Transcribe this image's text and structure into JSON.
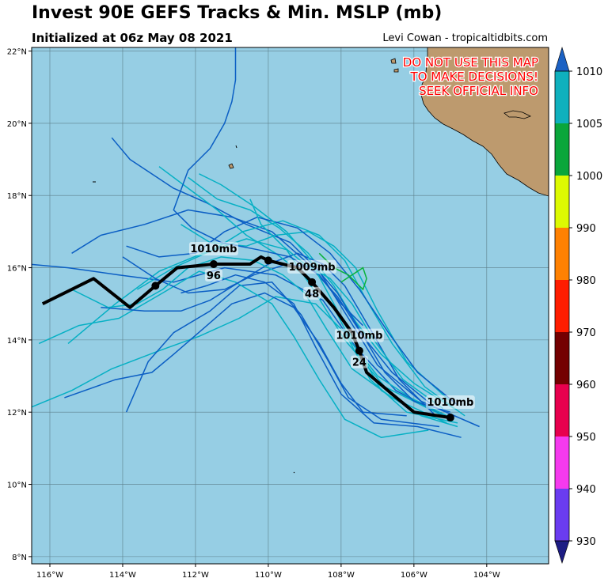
{
  "header": {
    "title": "Invest 90E GEFS Tracks & Min. MSLP (mb)",
    "subtitle": "Initialized at 06z May 08 2021",
    "credit": "Levi Cowan - tropicaltidbits.com"
  },
  "map": {
    "lon_range": [
      -116.5,
      -102.3
    ],
    "lat_range": [
      7.8,
      22.1
    ],
    "lon_ticks": [
      {
        "v": -116,
        "t": "116°W"
      },
      {
        "v": -114,
        "t": "114°W"
      },
      {
        "v": -112,
        "t": "112°W"
      },
      {
        "v": -110,
        "t": "110°W"
      },
      {
        "v": -108,
        "t": "108°W"
      },
      {
        "v": -106,
        "t": "106°W"
      },
      {
        "v": -104,
        "t": "104°W"
      }
    ],
    "lat_ticks": [
      {
        "v": 8,
        "t": "8°N"
      },
      {
        "v": 10,
        "t": "10°N"
      },
      {
        "v": 12,
        "t": "12°N"
      },
      {
        "v": 14,
        "t": "14°N"
      },
      {
        "v": 16,
        "t": "16°N"
      },
      {
        "v": 18,
        "t": "18°N"
      },
      {
        "v": 20,
        "t": "20°N"
      },
      {
        "v": 22,
        "t": "22°N"
      }
    ],
    "ocean_color": "#96cee4",
    "land_color": "#bd9a6e",
    "warning_lines": [
      "DO NOT USE THIS MAP",
      "TO MAKE DECISIONS!",
      "SEEK OFFICIAL INFO"
    ],
    "warning_color": "#ff0000"
  },
  "ensemble_mean": {
    "points": [
      [
        -116.2,
        15.0
      ],
      [
        -114.8,
        15.7
      ],
      [
        -113.8,
        14.9
      ],
      [
        -113.1,
        15.5
      ],
      [
        -112.5,
        16.0
      ],
      [
        -111.5,
        16.1
      ],
      [
        -110.5,
        16.1
      ],
      [
        -110.2,
        16.3
      ],
      [
        -110.0,
        16.2
      ],
      [
        -109.2,
        16.0
      ],
      [
        -108.8,
        15.6
      ],
      [
        -108.2,
        14.9
      ],
      [
        -107.7,
        14.2
      ],
      [
        -107.5,
        13.7
      ],
      [
        -107.3,
        13.1
      ],
      [
        -106.6,
        12.5
      ],
      [
        -106.0,
        12.0
      ],
      [
        -105.0,
        11.85
      ]
    ],
    "markers": [
      {
        "lon": -105.0,
        "lat": 11.85,
        "pressure": "1010mb",
        "hour": ""
      },
      {
        "lon": -107.5,
        "lat": 13.7,
        "pressure": "1010mb",
        "hour": "24"
      },
      {
        "lon": -108.8,
        "lat": 15.6,
        "pressure": "1009mb",
        "hour": "48"
      },
      {
        "lon": -110.0,
        "lat": 16.2,
        "pressure": "",
        "hour": ""
      },
      {
        "lon": -111.5,
        "lat": 16.1,
        "pressure": "1010mb",
        "hour": "96"
      },
      {
        "lon": -113.1,
        "lat": 15.5,
        "pressure": "",
        "hour": ""
      }
    ]
  },
  "members": [
    {
      "color": "#0b5ec4",
      "points": [
        [
          -105.0,
          11.8
        ],
        [
          -106.5,
          12.6
        ],
        [
          -107.6,
          13.8
        ],
        [
          -108.5,
          15.1
        ],
        [
          -109.8,
          15.8
        ],
        [
          -111.2,
          16.0
        ],
        [
          -112.6,
          15.6
        ],
        [
          -114.1,
          15.8
        ],
        [
          -115.5,
          16.0
        ],
        [
          -116.6,
          16.1
        ]
      ]
    },
    {
      "color": "#06b0c4",
      "points": [
        [
          -105.2,
          11.9
        ],
        [
          -106.8,
          12.7
        ],
        [
          -107.9,
          14.0
        ],
        [
          -108.7,
          15.3
        ],
        [
          -109.5,
          16.5
        ],
        [
          -110.6,
          16.8
        ],
        [
          -111.8,
          16.4
        ],
        [
          -113.0,
          15.9
        ],
        [
          -114.2,
          15.0
        ],
        [
          -115.5,
          13.9
        ]
      ]
    },
    {
      "color": "#0b5ec4",
      "points": [
        [
          -104.2,
          11.6
        ],
        [
          -105.8,
          12.3
        ],
        [
          -107.0,
          13.3
        ],
        [
          -107.8,
          14.6
        ],
        [
          -108.6,
          15.9
        ],
        [
          -109.4,
          16.7
        ],
        [
          -110.6,
          17.2
        ],
        [
          -111.7,
          17.8
        ],
        [
          -112.6,
          18.2
        ],
        [
          -113.8,
          19.0
        ],
        [
          -114.3,
          19.6
        ]
      ]
    },
    {
      "color": "#06b0c4",
      "points": [
        [
          -104.8,
          11.7
        ],
        [
          -106.2,
          12.0
        ],
        [
          -107.2,
          12.9
        ],
        [
          -107.9,
          14.2
        ],
        [
          -108.7,
          15.0
        ],
        [
          -109.8,
          15.2
        ],
        [
          -110.8,
          14.6
        ],
        [
          -111.9,
          14.1
        ],
        [
          -113.0,
          13.7
        ],
        [
          -114.3,
          13.2
        ],
        [
          -115.4,
          12.6
        ],
        [
          -116.6,
          12.1
        ]
      ]
    },
    {
      "color": "#0b5ec4",
      "points": [
        [
          -105.5,
          12.2
        ],
        [
          -106.6,
          13.1
        ],
        [
          -107.4,
          14.1
        ],
        [
          -108.1,
          15.2
        ],
        [
          -109.0,
          16.2
        ],
        [
          -109.9,
          17.0
        ],
        [
          -111.0,
          17.4
        ],
        [
          -112.2,
          17.6
        ],
        [
          -113.4,
          17.2
        ],
        [
          -114.6,
          16.9
        ],
        [
          -115.4,
          16.4
        ]
      ]
    },
    {
      "color": "#06b0c4",
      "points": [
        [
          -104.9,
          12.1
        ],
        [
          -106.0,
          12.8
        ],
        [
          -106.9,
          13.6
        ],
        [
          -107.6,
          14.5
        ],
        [
          -108.2,
          15.5
        ],
        [
          -108.9,
          16.4
        ],
        [
          -109.7,
          17.1
        ],
        [
          -110.5,
          17.6
        ],
        [
          -111.4,
          17.9
        ],
        [
          -112.2,
          18.5
        ]
      ]
    },
    {
      "color": "#0b5ec4",
      "points": [
        [
          -105.3,
          11.6
        ],
        [
          -106.9,
          11.8
        ],
        [
          -107.8,
          12.4
        ],
        [
          -108.4,
          13.5
        ],
        [
          -109.1,
          14.7
        ],
        [
          -109.9,
          15.6
        ],
        [
          -110.8,
          15.5
        ],
        [
          -111.6,
          14.8
        ],
        [
          -112.6,
          14.2
        ],
        [
          -113.3,
          13.4
        ],
        [
          -113.9,
          12.0
        ]
      ]
    },
    {
      "color": "#06b0c4",
      "points": [
        [
          -105.0,
          12.3
        ],
        [
          -106.2,
          13.4
        ],
        [
          -107.0,
          14.8
        ],
        [
          -107.6,
          16.0
        ],
        [
          -108.2,
          16.6
        ],
        [
          -108.9,
          17.0
        ],
        [
          -109.8,
          16.9
        ],
        [
          -110.6,
          16.6
        ],
        [
          -111.6,
          16.7
        ],
        [
          -112.4,
          17.2
        ]
      ]
    },
    {
      "color": "#0b5ec4",
      "points": [
        [
          -106.2,
          11.9
        ],
        [
          -107.4,
          12.0
        ],
        [
          -108.0,
          12.8
        ],
        [
          -108.6,
          13.9
        ],
        [
          -109.3,
          14.9
        ],
        [
          -110.1,
          15.3
        ],
        [
          -111.0,
          15.0
        ],
        [
          -111.8,
          14.3
        ],
        [
          -112.6,
          13.6
        ],
        [
          -113.2,
          13.1
        ],
        [
          -114.2,
          12.9
        ],
        [
          -115.6,
          12.4
        ]
      ]
    },
    {
      "color": "#06b0c4",
      "points": [
        [
          -104.6,
          11.9
        ],
        [
          -105.7,
          12.7
        ],
        [
          -106.6,
          13.9
        ],
        [
          -107.3,
          15.1
        ],
        [
          -107.9,
          16.2
        ],
        [
          -108.6,
          16.9
        ],
        [
          -109.6,
          17.3
        ],
        [
          -110.7,
          17.0
        ],
        [
          -111.5,
          16.5
        ],
        [
          -112.6,
          16.0
        ],
        [
          -113.6,
          15.4
        ]
      ]
    },
    {
      "color": "#0b5ec4",
      "points": [
        [
          -104.8,
          12.2
        ],
        [
          -105.9,
          13.1
        ],
        [
          -106.7,
          14.2
        ],
        [
          -107.5,
          15.4
        ],
        [
          -108.3,
          16.4
        ],
        [
          -109.2,
          17.1
        ],
        [
          -110.3,
          17.4
        ],
        [
          -111.2,
          17.0
        ],
        [
          -112.0,
          16.4
        ],
        [
          -113.0,
          16.3
        ],
        [
          -113.9,
          16.6
        ]
      ]
    },
    {
      "color": "#06b0c4",
      "points": [
        [
          -105.6,
          11.5
        ],
        [
          -106.9,
          11.3
        ],
        [
          -107.9,
          11.8
        ],
        [
          -108.6,
          12.9
        ],
        [
          -109.3,
          14.1
        ],
        [
          -109.9,
          15.0
        ],
        [
          -110.9,
          15.6
        ],
        [
          -111.9,
          15.9
        ],
        [
          -112.9,
          15.3
        ],
        [
          -114.1,
          14.6
        ],
        [
          -115.2,
          14.4
        ],
        [
          -116.3,
          13.9
        ]
      ]
    },
    {
      "color": "#0b5ec4",
      "points": [
        [
          -105.4,
          11.9
        ],
        [
          -106.4,
          12.9
        ],
        [
          -107.2,
          14.3
        ],
        [
          -107.9,
          15.5
        ],
        [
          -108.5,
          16.1
        ],
        [
          -109.2,
          16.4
        ],
        [
          -110.0,
          16.1
        ],
        [
          -110.8,
          15.6
        ],
        [
          -111.6,
          15.1
        ],
        [
          -112.4,
          14.8
        ],
        [
          -113.4,
          14.8
        ],
        [
          -114.6,
          14.9
        ]
      ]
    },
    {
      "color": "#06b0c4",
      "points": [
        [
          -104.9,
          11.8
        ],
        [
          -106.1,
          12.4
        ],
        [
          -107.0,
          13.0
        ],
        [
          -107.7,
          13.9
        ],
        [
          -108.2,
          14.9
        ],
        [
          -108.9,
          15.7
        ],
        [
          -109.8,
          16.4
        ],
        [
          -110.6,
          16.9
        ],
        [
          -111.4,
          17.6
        ],
        [
          -112.2,
          18.2
        ],
        [
          -113.0,
          18.8
        ]
      ]
    },
    {
      "color": "#0b5ec4",
      "points": [
        [
          -107.4,
          14.4
        ],
        [
          -108.0,
          15.0
        ],
        [
          -108.6,
          15.8
        ],
        [
          -109.4,
          16.3
        ],
        [
          -110.3,
          16.5
        ],
        [
          -111.3,
          16.7
        ],
        [
          -112.1,
          17.1
        ],
        [
          -112.6,
          17.6
        ],
        [
          -112.2,
          18.7
        ],
        [
          -111.6,
          19.3
        ],
        [
          -111.2,
          20.0
        ],
        [
          -111.0,
          20.6
        ],
        [
          -110.9,
          21.2
        ],
        [
          -110.9,
          22.1
        ]
      ]
    },
    {
      "color": "#06b0c4",
      "points": [
        [
          -104.8,
          11.6
        ],
        [
          -105.8,
          11.9
        ],
        [
          -106.9,
          12.6
        ],
        [
          -107.5,
          13.7
        ],
        [
          -108.2,
          15.0
        ],
        [
          -108.9,
          16.3
        ],
        [
          -109.5,
          17.0
        ],
        [
          -110.4,
          17.7
        ],
        [
          -111.3,
          18.3
        ],
        [
          -111.9,
          18.6
        ]
      ]
    },
    {
      "color": "#0b5ec4",
      "points": [
        [
          -105.0,
          12.0
        ],
        [
          -106.0,
          12.3
        ],
        [
          -106.8,
          13.1
        ],
        [
          -107.5,
          14.3
        ],
        [
          -108.1,
          15.3
        ],
        [
          -108.7,
          16.0
        ],
        [
          -109.5,
          16.1
        ],
        [
          -110.4,
          15.8
        ],
        [
          -111.2,
          15.4
        ],
        [
          -112.2,
          15.3
        ],
        [
          -113.1,
          15.7
        ],
        [
          -114.0,
          16.3
        ]
      ]
    },
    {
      "color": "#06b0c4",
      "points": [
        [
          -105.2,
          12.1
        ],
        [
          -106.3,
          12.9
        ],
        [
          -107.1,
          14.0
        ],
        [
          -107.7,
          15.0
        ],
        [
          -108.3,
          15.7
        ],
        [
          -109.0,
          16.1
        ],
        [
          -109.6,
          16.6
        ],
        [
          -110.2,
          17.2
        ],
        [
          -110.5,
          17.9
        ]
      ]
    },
    {
      "color": "#0b5ec4",
      "points": [
        [
          -104.7,
          11.3
        ],
        [
          -105.9,
          11.6
        ],
        [
          -107.1,
          11.7
        ],
        [
          -108.0,
          12.5
        ],
        [
          -108.7,
          13.8
        ],
        [
          -109.3,
          15.0
        ],
        [
          -110.1,
          15.6
        ],
        [
          -110.9,
          15.8
        ],
        [
          -111.7,
          15.5
        ],
        [
          -112.4,
          15.3
        ]
      ]
    },
    {
      "color": "#06b0c4",
      "points": [
        [
          -105.1,
          11.7
        ],
        [
          -106.6,
          12.4
        ],
        [
          -107.7,
          13.2
        ],
        [
          -108.4,
          14.3
        ],
        [
          -109.0,
          15.3
        ],
        [
          -109.6,
          15.8
        ],
        [
          -110.4,
          16.2
        ],
        [
          -111.3,
          16.3
        ],
        [
          -112.2,
          16.0
        ],
        [
          -112.9,
          15.4
        ],
        [
          -113.6,
          15.0
        ],
        [
          -114.4,
          14.9
        ],
        [
          -115.4,
          15.4
        ]
      ]
    }
  ],
  "green_segment": {
    "color": "#09b23a",
    "points": [
      [
        -108.6,
        16.4
      ],
      [
        -108.2,
        16.0
      ],
      [
        -107.8,
        15.8
      ],
      [
        -107.4,
        15.4
      ],
      [
        -107.3,
        15.7
      ],
      [
        -107.4,
        16.0
      ],
      [
        -108.0,
        15.6
      ]
    ]
  },
  "colorbar": {
    "levels": [
      1010,
      1005,
      1000,
      990,
      980,
      970,
      960,
      950,
      940,
      930
    ],
    "colors": [
      "#0fb0bd",
      "#0aa63b",
      "#ddfa02",
      "#ff8102",
      "#fe1d00",
      "#740001",
      "#e7004e",
      "#f53aee",
      "#6a3cf0"
    ],
    "top_arrow_color": "#1b61c3",
    "bottom_arrow_color": "#1d1d84"
  }
}
